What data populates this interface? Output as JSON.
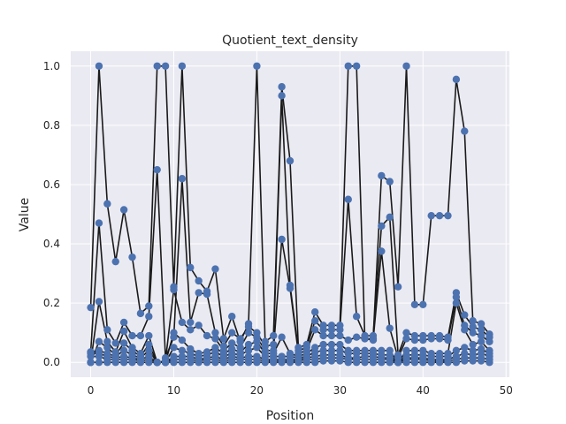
{
  "chart_data": {
    "type": "line",
    "title": "Quotient_text_density",
    "xlabel": "Position",
    "ylabel": "Value",
    "xlim": [
      -2.4,
      50.4
    ],
    "ylim": [
      -0.05,
      1.05
    ],
    "x_ticks": [
      0,
      10,
      20,
      30,
      40,
      50
    ],
    "y_ticks": [
      0.0,
      0.2,
      0.4,
      0.6,
      0.8,
      1.0
    ],
    "y_tick_labels": [
      "0.0",
      "0.2",
      "0.4",
      "0.6",
      "0.8",
      "1.0"
    ],
    "grid": true,
    "marker": "circle",
    "line_color": "#1a1a1a",
    "marker_color": "#4c72b0",
    "background": "#eaeaf2",
    "x": [
      0,
      1,
      2,
      3,
      4,
      5,
      6,
      7,
      8,
      9,
      10,
      11,
      12,
      13,
      14,
      15,
      16,
      17,
      18,
      19,
      20,
      21,
      22,
      23,
      24,
      25,
      26,
      27,
      28,
      29,
      30,
      31,
      32,
      33,
      34,
      35,
      36,
      37,
      38,
      39,
      40,
      41,
      42,
      43,
      44,
      45,
      46,
      47,
      48
    ],
    "series": [
      {
        "values": [
          0.185,
          1.0,
          0.535,
          0.34,
          0.515,
          0.355,
          0.165,
          0.19,
          1.0,
          1.0,
          0.255,
          1.0,
          0.32,
          0.275,
          0.24,
          0.315,
          0.08,
          0.155,
          0.07,
          0.13,
          1.0,
          0.07,
          0.09,
          0.93,
          0.68,
          0.05,
          0.06,
          0.17,
          0.125,
          0.125,
          0.125,
          1.0,
          1.0,
          0.08,
          0.08,
          0.63,
          0.61,
          0.255,
          1.0,
          0.195,
          0.195,
          0.495,
          0.495,
          0.495,
          0.955,
          0.78,
          0.14,
          0.13,
          0.095
        ]
      },
      {
        "values": [
          0.035,
          0.47,
          0.11,
          0.065,
          0.135,
          0.09,
          0.09,
          0.155,
          0.65,
          0.015,
          0.085,
          0.62,
          0.135,
          0.235,
          0.23,
          0.1,
          0.055,
          0.1,
          0.08,
          0.12,
          0.1,
          0.055,
          0.06,
          0.9,
          0.26,
          0.04,
          0.05,
          0.14,
          0.11,
          0.11,
          0.11,
          0.55,
          0.155,
          0.09,
          0.09,
          0.46,
          0.49,
          0.025,
          0.1,
          0.09,
          0.09,
          0.09,
          0.09,
          0.085,
          0.235,
          0.16,
          0.12,
          0.11,
          0.085
        ]
      },
      {
        "values": [
          0.0,
          0.205,
          0.07,
          0.035,
          0.105,
          0.05,
          0.03,
          0.09,
          0.0,
          0.005,
          0.245,
          0.135,
          0.11,
          0.125,
          0.09,
          0.08,
          0.04,
          0.065,
          0.05,
          0.1,
          0.085,
          0.04,
          0.04,
          0.415,
          0.25,
          0.03,
          0.04,
          0.11,
          0.09,
          0.09,
          0.09,
          0.075,
          0.085,
          0.08,
          0.075,
          0.375,
          0.115,
          0.015,
          0.08,
          0.075,
          0.075,
          0.08,
          0.08,
          0.075,
          0.22,
          0.125,
          0.1,
          0.09,
          0.07
        ]
      },
      {
        "values": [
          0.0,
          0.07,
          0.05,
          0.025,
          0.065,
          0.04,
          0.02,
          0.06,
          0.0,
          0.0,
          0.1,
          0.075,
          0.045,
          0.03,
          0.035,
          0.05,
          0.03,
          0.045,
          0.035,
          0.06,
          0.07,
          0.03,
          0.03,
          0.085,
          0.03,
          0.02,
          0.03,
          0.05,
          0.06,
          0.06,
          0.06,
          0.04,
          0.04,
          0.04,
          0.04,
          0.04,
          0.04,
          0.0,
          0.04,
          0.04,
          0.04,
          0.03,
          0.03,
          0.03,
          0.2,
          0.11,
          0.06,
          0.07,
          0.04
        ]
      },
      {
        "values": [
          0.035,
          0.04,
          0.03,
          0.02,
          0.04,
          0.025,
          0.015,
          0.04,
          0.0,
          0.0,
          0.05,
          0.04,
          0.03,
          0.02,
          0.025,
          0.035,
          0.02,
          0.03,
          0.025,
          0.04,
          0.05,
          0.02,
          0.02,
          0.02,
          0.02,
          0.015,
          0.02,
          0.035,
          0.04,
          0.04,
          0.04,
          0.03,
          0.03,
          0.03,
          0.03,
          0.025,
          0.025,
          0.0,
          0.025,
          0.025,
          0.025,
          0.02,
          0.02,
          0.02,
          0.04,
          0.05,
          0.04,
          0.045,
          0.03
        ]
      },
      {
        "values": [
          0.03,
          0.03,
          0.02,
          0.015,
          0.02,
          0.015,
          0.01,
          0.02,
          0.0,
          0.0,
          0.02,
          0.02,
          0.02,
          0.01,
          0.015,
          0.02,
          0.01,
          0.02,
          0.015,
          0.02,
          0.02,
          0.01,
          0.01,
          0.01,
          0.01,
          0.01,
          0.015,
          0.02,
          0.025,
          0.025,
          0.025,
          0.015,
          0.015,
          0.02,
          0.02,
          0.015,
          0.015,
          0.0,
          0.015,
          0.015,
          0.015,
          0.01,
          0.01,
          0.01,
          0.02,
          0.03,
          0.025,
          0.03,
          0.02
        ]
      },
      {
        "values": [
          0.02,
          0.02,
          0.01,
          0.01,
          0.01,
          0.01,
          0.005,
          0.01,
          0.0,
          0.0,
          0.01,
          0.01,
          0.01,
          0.005,
          0.01,
          0.01,
          0.005,
          0.01,
          0.01,
          0.01,
          0.01,
          0.005,
          0.005,
          0.005,
          0.005,
          0.005,
          0.01,
          0.01,
          0.015,
          0.015,
          0.015,
          0.01,
          0.01,
          0.01,
          0.01,
          0.01,
          0.01,
          0.0,
          0.01,
          0.01,
          0.01,
          0.005,
          0.005,
          0.005,
          0.01,
          0.015,
          0.015,
          0.015,
          0.01
        ]
      },
      {
        "values": [
          0.0,
          0.0,
          0.0,
          0.0,
          0.0,
          0.0,
          0.0,
          0.0,
          0.0,
          0.0,
          0.0,
          0.0,
          0.0,
          0.0,
          0.0,
          0.0,
          0.0,
          0.0,
          0.0,
          0.0,
          0.0,
          0.0,
          0.0,
          0.0,
          0.0,
          0.0,
          0.0,
          0.0,
          0.005,
          0.005,
          0.005,
          0.0,
          0.0,
          0.0,
          0.0,
          0.0,
          0.0,
          0.0,
          0.0,
          0.0,
          0.0,
          0.0,
          0.0,
          0.0,
          0.0,
          0.005,
          0.005,
          0.005,
          0.0
        ]
      }
    ]
  }
}
